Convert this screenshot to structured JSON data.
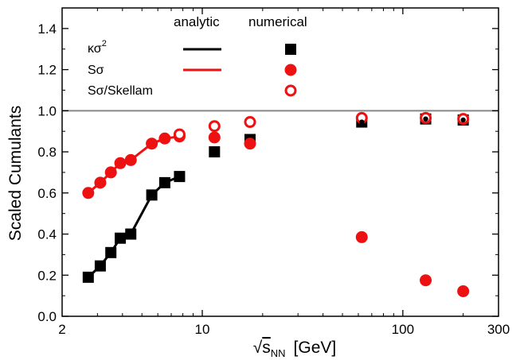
{
  "chart_data": {
    "type": "scatter",
    "xlabel_prefix": "√",
    "xlabel_s": "s",
    "xlabel_sub": "NN",
    "xlabel_unit": "[GeV]",
    "ylabel": "Scaled Cumulants",
    "xscale": "log",
    "xlim": [
      2,
      300
    ],
    "ylim": [
      0.0,
      1.5
    ],
    "xticks": [
      2,
      10,
      100,
      300
    ],
    "xtick_labels": [
      "2",
      "10",
      "100",
      "300"
    ],
    "yticks": [
      0.0,
      0.2,
      0.4,
      0.6,
      0.8,
      1.0,
      1.2,
      1.4
    ],
    "ytick_labels": [
      "0.0",
      "0.2",
      "0.4",
      "0.6",
      "0.8",
      "1.0",
      "1.2",
      "1.4"
    ],
    "reference_line": 1.0,
    "legend": {
      "analytic_header": "analytic",
      "numerical_header": "numerical",
      "entries": [
        {
          "label_main": "κσ",
          "label_sup": "2",
          "color": "#000000",
          "marker": "filled-square"
        },
        {
          "label_main": "Sσ",
          "label_sup": "",
          "color": "#ee1111",
          "marker": "filled-circle"
        },
        {
          "label_main": "Sσ/Skellam",
          "label_sup": "",
          "color": "#ee1111",
          "marker": "open-circle"
        }
      ]
    },
    "series": [
      {
        "name": "κσ2 analytic",
        "kind": "line",
        "color": "#000000",
        "x": [
          2.7,
          3.1,
          3.5,
          3.9,
          4.4,
          5.6,
          6.5,
          7.7
        ],
        "y": [
          0.19,
          0.245,
          0.31,
          0.38,
          0.4,
          0.59,
          0.65,
          0.68
        ]
      },
      {
        "name": "κσ2 numerical",
        "kind": "square",
        "color": "#000000",
        "x": [
          2.7,
          3.1,
          3.5,
          3.9,
          4.4,
          5.6,
          6.5,
          7.7,
          11.5,
          17.3,
          62.4,
          130,
          200
        ],
        "y": [
          0.19,
          0.245,
          0.31,
          0.38,
          0.4,
          0.59,
          0.65,
          0.68,
          0.8,
          0.86,
          0.945,
          0.96,
          0.955
        ]
      },
      {
        "name": "Sσ analytic",
        "kind": "line",
        "color": "#ee1111",
        "x": [
          2.7,
          3.1,
          3.5,
          3.9,
          4.4,
          5.6,
          6.5,
          7.7
        ],
        "y": [
          0.6,
          0.65,
          0.7,
          0.745,
          0.76,
          0.84,
          0.865,
          0.875
        ]
      },
      {
        "name": "Sσ numerical",
        "kind": "circle",
        "color": "#ee1111",
        "x": [
          2.7,
          3.1,
          3.5,
          3.9,
          4.4,
          5.6,
          6.5,
          7.7,
          11.5,
          17.3,
          62.4,
          130,
          200
        ],
        "y": [
          0.6,
          0.65,
          0.7,
          0.745,
          0.76,
          0.84,
          0.865,
          0.875,
          0.87,
          0.84,
          0.385,
          0.175,
          0.122
        ]
      },
      {
        "name": "Sσ/Skellam numerical",
        "kind": "open-circle",
        "color": "#ee1111",
        "x": [
          7.7,
          11.5,
          17.3,
          62.4,
          130,
          200
        ],
        "y": [
          0.885,
          0.925,
          0.945,
          0.965,
          0.965,
          0.96
        ]
      },
      {
        "name": "κσ2 overlay",
        "kind": "dot",
        "color": "#000000",
        "x": [
          62.4,
          130,
          200
        ],
        "y": [
          0.945,
          0.96,
          0.955
        ]
      }
    ]
  }
}
